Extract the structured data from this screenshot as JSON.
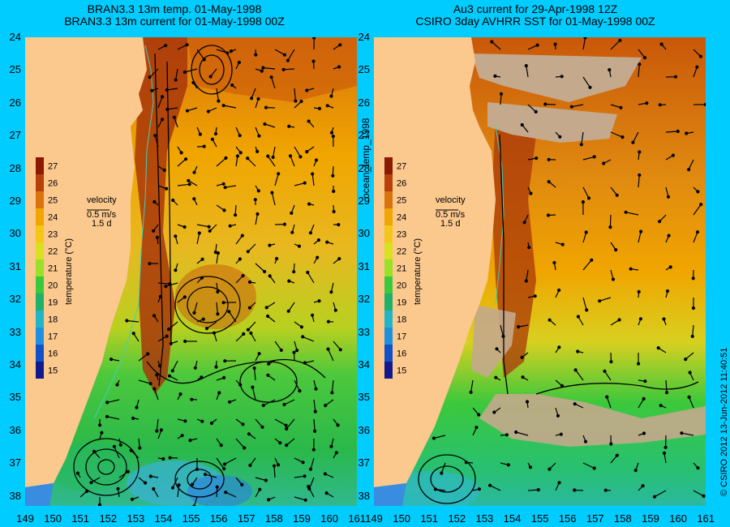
{
  "titles": {
    "left_line1": "BRAN3.3 13m temp. 01-May-1998",
    "left_line2": "BRAN3.3 13m current for 01-May-1998 00Z",
    "right_line1": "Au3 current for 29-Apr-1998 12Z",
    "right_line2": "CSIRO 3day AVHRR SST for 01-May-1998 00Z"
  },
  "side_label": "ocean_temp_1998",
  "credit": "© CSIRO 2012   13-Jun-2012 11:40:51",
  "colorbar": {
    "ticks": [
      "27",
      "26",
      "25",
      "24",
      "23",
      "22",
      "21",
      "20",
      "19",
      "18",
      "17",
      "16",
      "15"
    ],
    "label": "temperature (°C)",
    "colors": [
      "#8b1a00",
      "#b8400a",
      "#d9730d",
      "#f0a500",
      "#f5c518",
      "#d8e020",
      "#9be028",
      "#3cc83c",
      "#1fb06a",
      "#22b5c8",
      "#1e90e0",
      "#1050c8",
      "#101a8c"
    ]
  },
  "velocity_key": {
    "label": "velocity",
    "speed": "0.5 m/s",
    "duration": "1.5 d"
  },
  "axes": {
    "lat_labels": [
      "24",
      "25",
      "26",
      "27",
      "28",
      "29",
      "30",
      "31",
      "32",
      "33",
      "34",
      "35",
      "36",
      "37",
      "38"
    ],
    "lon_labels": [
      "149",
      "150",
      "151",
      "152",
      "153",
      "154",
      "155",
      "156",
      "157",
      "158",
      "159",
      "160",
      "161"
    ]
  },
  "colors": {
    "background": "#00ccff",
    "land": "#fbc88e",
    "cloud": "#c4a98c"
  }
}
